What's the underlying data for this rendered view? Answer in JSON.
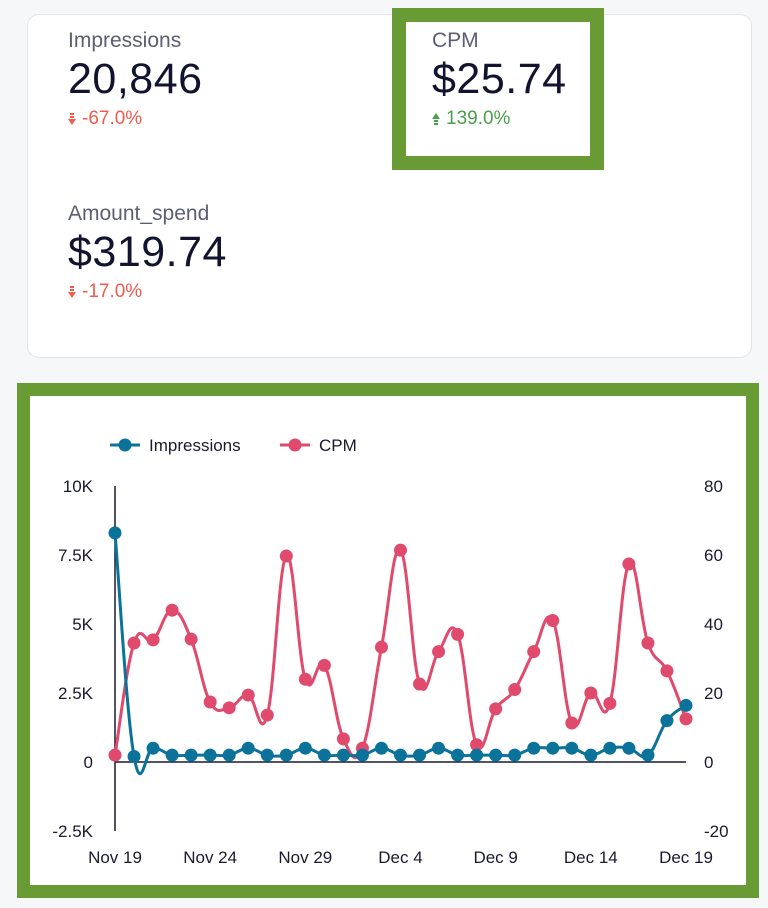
{
  "scorecards": [
    {
      "label": "Impressions",
      "value": "20,846",
      "delta": "-67.0%",
      "direction": "down"
    },
    {
      "label": "CPM",
      "value": "$25.74",
      "delta": "139.0%",
      "direction": "up"
    },
    {
      "label": "Amount_spend",
      "value": "$319.74",
      "delta": "-17.0%",
      "direction": "down"
    }
  ],
  "colors": {
    "down": "#ef5b4c",
    "up": "#4a9f4c",
    "highlight": "#689b34",
    "impressions": "#0b7299",
    "cpm": "#e04a6d"
  },
  "chart_data": {
    "type": "line",
    "legend_position": "top-left",
    "x": [
      "Nov 19",
      "Nov 20",
      "Nov 21",
      "Nov 22",
      "Nov 23",
      "Nov 24",
      "Nov 25",
      "Nov 26",
      "Nov 27",
      "Nov 28",
      "Nov 29",
      "Nov 30",
      "Dec 1",
      "Dec 2",
      "Dec 3",
      "Dec 4",
      "Dec 5",
      "Dec 6",
      "Dec 7",
      "Dec 8",
      "Dec 9",
      "Dec 10",
      "Dec 11",
      "Dec 12",
      "Dec 13",
      "Dec 14",
      "Dec 15",
      "Dec 16",
      "Dec 17",
      "Dec 18",
      "Dec 19"
    ],
    "x_tick_labels": [
      "Nov 19",
      "Nov 24",
      "Nov 29",
      "Dec 4",
      "Dec 9",
      "Dec 14",
      "Dec 19"
    ],
    "left_axis": {
      "range": [
        -2500,
        10000
      ],
      "ticks": [
        "-2.5K",
        "0",
        "2.5K",
        "5K",
        "7.5K",
        "10K"
      ]
    },
    "right_axis": {
      "range": [
        -20,
        80
      ],
      "ticks": [
        "-20",
        "0",
        "20",
        "40",
        "60",
        "80"
      ]
    },
    "grid": false,
    "series": [
      {
        "name": "Impressions",
        "axis": "left",
        "values": [
          8300,
          200,
          500,
          250,
          250,
          250,
          250,
          500,
          250,
          250,
          500,
          250,
          250,
          250,
          500,
          250,
          250,
          500,
          250,
          250,
          250,
          250,
          500,
          500,
          500,
          250,
          500,
          500,
          250,
          1500,
          2050
        ]
      },
      {
        "name": "CPM",
        "axis": "right",
        "values": [
          2,
          34.5,
          35.4,
          44,
          35.6,
          17.4,
          15.7,
          19.4,
          13.6,
          59.7,
          24,
          28,
          6.7,
          4,
          33.3,
          61.4,
          22.6,
          32,
          37,
          5,
          15.4,
          21,
          32,
          41,
          11.3,
          20,
          17,
          57.4,
          34.5,
          26.4,
          12.5
        ]
      }
    ]
  }
}
